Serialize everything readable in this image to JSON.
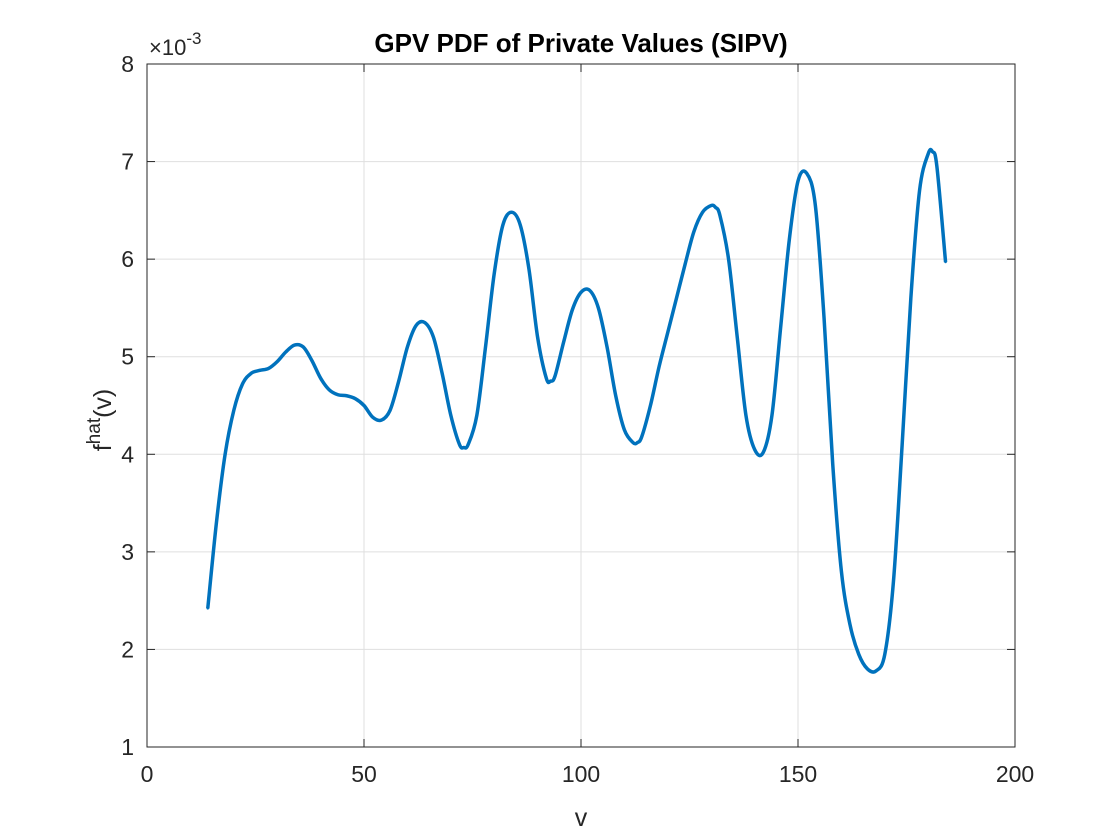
{
  "chart_data": {
    "type": "line",
    "title": "GPV PDF of Private Values (SIPV)",
    "xlabel": "v",
    "ylabel": {
      "base": "f",
      "superscript": "hat",
      "suffix": "(v)"
    },
    "xlim": [
      0,
      200
    ],
    "ylim": [
      1,
      8
    ],
    "y_exponent_label": {
      "base": "×10",
      "exponent": "-3"
    },
    "xticks": [
      0,
      50,
      100,
      150,
      200
    ],
    "yticks": [
      1,
      2,
      3,
      4,
      5,
      6,
      7,
      8
    ],
    "xtick_labels": [
      "0",
      "50",
      "100",
      "150",
      "200"
    ],
    "ytick_labels": [
      "1",
      "2",
      "3",
      "4",
      "5",
      "6",
      "7",
      "8"
    ],
    "grid": true,
    "box": true,
    "line_color": "#0072BD",
    "series": [
      {
        "x": [
          14,
          16,
          18,
          20,
          22,
          24,
          26,
          28,
          30,
          32,
          34,
          36,
          38,
          40,
          42,
          44,
          46,
          48,
          50,
          52,
          54,
          56,
          58,
          60,
          62,
          64,
          66,
          68,
          70,
          72,
          73,
          74,
          76,
          78,
          80,
          82,
          84,
          86,
          88,
          90,
          92,
          93,
          94,
          96,
          98,
          100,
          102,
          104,
          106,
          108,
          110,
          112,
          113,
          114,
          116,
          118,
          120,
          122,
          124,
          126,
          128,
          130,
          131,
          132,
          134,
          136,
          138,
          140,
          142,
          144,
          146,
          148,
          150,
          152,
          154,
          156,
          158,
          160,
          162,
          164,
          166,
          168,
          170,
          172,
          174,
          176,
          178,
          180,
          181,
          182,
          184
        ],
        "y": [
          2.42,
          3.3,
          4.0,
          4.45,
          4.72,
          4.83,
          4.86,
          4.88,
          4.95,
          5.05,
          5.12,
          5.1,
          4.96,
          4.78,
          4.66,
          4.61,
          4.6,
          4.57,
          4.5,
          4.38,
          4.35,
          4.45,
          4.75,
          5.1,
          5.32,
          5.35,
          5.2,
          4.83,
          4.4,
          4.1,
          4.07,
          4.1,
          4.4,
          5.1,
          5.85,
          6.35,
          6.48,
          6.35,
          5.9,
          5.2,
          4.78,
          4.75,
          4.8,
          5.15,
          5.48,
          5.66,
          5.68,
          5.5,
          5.1,
          4.6,
          4.25,
          4.12,
          4.12,
          4.18,
          4.5,
          4.9,
          5.25,
          5.6,
          5.95,
          6.28,
          6.48,
          6.55,
          6.53,
          6.45,
          6.0,
          5.2,
          4.4,
          4.05,
          4.02,
          4.4,
          5.3,
          6.2,
          6.8,
          6.88,
          6.55,
          5.4,
          3.9,
          2.8,
          2.25,
          1.95,
          1.8,
          1.78,
          1.95,
          2.7,
          4.1,
          5.6,
          6.7,
          7.08,
          7.1,
          6.95,
          5.97
        ]
      }
    ]
  }
}
